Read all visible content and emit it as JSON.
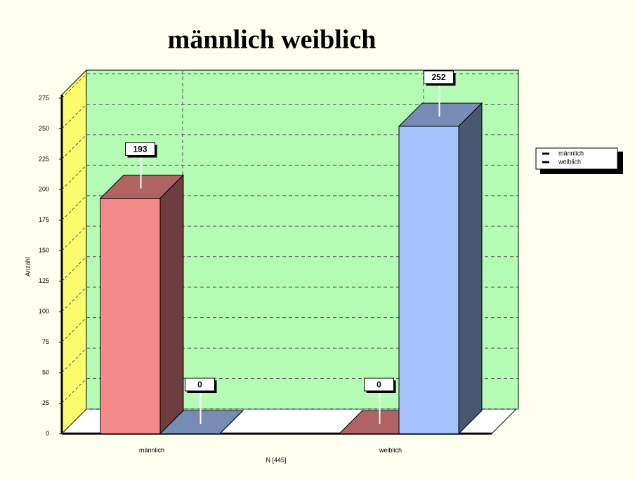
{
  "chart_data": {
    "type": "bar3d",
    "title": "männlich weiblich",
    "categories": [
      "männlich",
      "weiblich"
    ],
    "series": [
      {
        "name": "männlich",
        "color": "#f48a8a",
        "values": [
          193,
          0
        ]
      },
      {
        "name": "weiblich",
        "color": "#a4c2fc",
        "values": [
          0,
          252
        ]
      }
    ],
    "y_label": "Anzahl",
    "x_label": "N [445]",
    "ylim": [
      0,
      275
    ],
    "yticks": [
      0,
      25,
      50,
      75,
      100,
      125,
      150,
      175,
      200,
      225,
      250,
      275
    ],
    "grid": true,
    "legend": "right"
  }
}
